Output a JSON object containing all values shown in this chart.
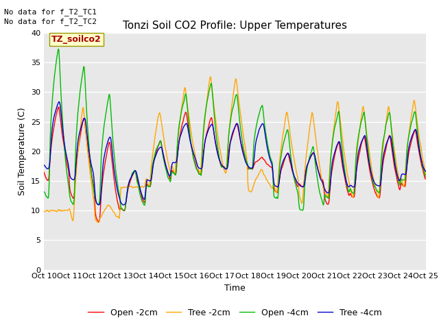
{
  "title": "Tonzi Soil CO2 Profile: Upper Temperatures",
  "xlabel": "Time",
  "ylabel": "Soil Temperature (C)",
  "ylim": [
    0,
    40
  ],
  "ytick_vals": [
    0,
    5,
    10,
    15,
    20,
    25,
    30,
    35,
    40
  ],
  "xtick_labels": [
    "Oct 10",
    "Oct 11",
    "Oct 12",
    "Oct 13",
    "Oct 14",
    "Oct 15",
    "Oct 16",
    "Oct 17",
    "Oct 18",
    "Oct 19",
    "Oct 20",
    "Oct 21",
    "Oct 22",
    "Oct 23",
    "Oct 24",
    "Oct 25"
  ],
  "legend_labels": [
    "Open -2cm",
    "Tree -2cm",
    "Open -4cm",
    "Tree -4cm"
  ],
  "legend_colors": [
    "#ff0000",
    "#ffa500",
    "#00bb00",
    "#0000cc"
  ],
  "no_data_text1": "No data for f_T2_TC1",
  "no_data_text2": "No data for f_T2_TC2",
  "dataset_label": "TZ_soilco2",
  "bg_color": "#e8e8e8",
  "grid_color": "#ffffff",
  "title_fontsize": 11,
  "axis_label_fontsize": 9,
  "tick_fontsize": 8,
  "legend_fontsize": 9,
  "nodata_fontsize": 8
}
